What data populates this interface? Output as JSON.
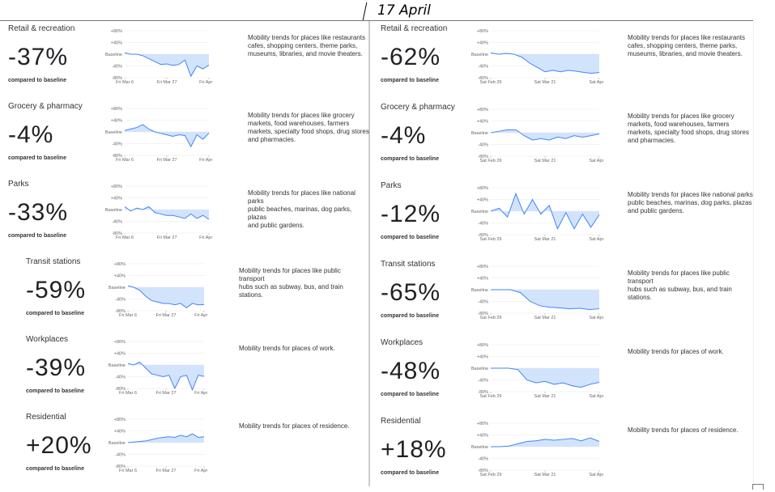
{
  "header": {
    "date": "17 April"
  },
  "colors": {
    "line": "#4285f4",
    "fill": "#d2e3fc",
    "grid": "#e8e8e8"
  },
  "y_labels": [
    "+80%",
    "+40%",
    "Baseline",
    "-40%",
    "-80%"
  ],
  "compared_label": "compared to baseline",
  "left": {
    "x_labels": [
      "Fri Mar 6",
      "Fri Mar 27",
      "Fri Apr 17"
    ],
    "rows": [
      {
        "title": "Retail & recreation",
        "value": "-37%",
        "desc": "Mobility trends for places like restaurants\ncafes, shopping centers, theme parks,\nmuseums, libraries, and movie theaters.",
        "series": [
          5,
          0,
          0,
          -5,
          -15,
          -25,
          -35,
          -33,
          -38,
          -35,
          -20,
          -75,
          -40,
          -50,
          -37
        ]
      },
      {
        "title": "Grocery & pharmacy",
        "value": "-4%",
        "desc": "Mobility trends for places like grocery\nmarkets, food warehouses, farmers\nmarkets, specialty food shops, drug stores\nand pharmacies.",
        "series": [
          5,
          10,
          15,
          25,
          10,
          0,
          -5,
          -10,
          -15,
          -10,
          -12,
          -50,
          -10,
          -25,
          -4
        ]
      },
      {
        "title": "Parks",
        "value": "-33%",
        "desc": "Mobility trends for places like national parks\npublic beaches, marinas, dog parks, plazas\nand public gardens.",
        "series": [
          10,
          -5,
          5,
          0,
          10,
          -10,
          -15,
          -20,
          -20,
          -25,
          -30,
          -15,
          -30,
          -20,
          -33
        ]
      },
      {
        "title": "Transit stations",
        "value": "-59%",
        "desc": "Mobility trends for places like public transport\nhubs such as subway, bus, and train stations.",
        "series": [
          5,
          0,
          -10,
          -30,
          -45,
          -50,
          -55,
          -55,
          -60,
          -55,
          -70,
          -55,
          -60,
          -59
        ]
      },
      {
        "title": "Workplaces",
        "value": "-39%",
        "desc": "Mobility trends for places of work.",
        "series": [
          5,
          0,
          10,
          -10,
          -30,
          -35,
          -40,
          -35,
          -80,
          -40,
          -35,
          -85,
          -35,
          -39
        ]
      },
      {
        "title": "Residential",
        "value": "+20%",
        "desc": "Mobility trends for places of residence.",
        "series": [
          0,
          2,
          4,
          6,
          10,
          15,
          18,
          20,
          18,
          25,
          20,
          30,
          18,
          20
        ]
      }
    ]
  },
  "right": {
    "x_labels": [
      "Sat Feb 29",
      "Sat Mar 21",
      "Sat Apr 11"
    ],
    "rows": [
      {
        "title": "Retail & recreation",
        "value": "-62%",
        "desc": "Mobility trends for places like restaurants\ncafes, shopping centers, theme parks,\nmuseums, libraries, and movie theaters.",
        "series": [
          5,
          0,
          3,
          0,
          -10,
          -30,
          -45,
          -60,
          -55,
          -60,
          -55,
          -58,
          -62,
          -65,
          -62
        ]
      },
      {
        "title": "Grocery & pharmacy",
        "value": "-4%",
        "desc": "Mobility trends for places like grocery\nmarkets, food warehouses, farmers\nmarkets, specialty food shops, drug stores\nand pharmacies.",
        "series": [
          0,
          5,
          10,
          10,
          -10,
          -25,
          -20,
          -25,
          -15,
          -20,
          -10,
          -15,
          -10,
          -4
        ]
      },
      {
        "title": "Parks",
        "value": "-12%",
        "desc": "Mobility trends for places like national parks\npublic beaches, marinas, dog parks, plazas\nand public gardens.",
        "series": [
          0,
          10,
          -20,
          60,
          -10,
          40,
          -10,
          20,
          -60,
          -5,
          -60,
          -10,
          -55,
          -12
        ]
      },
      {
        "title": "Transit stations",
        "value": "-65%",
        "desc": "Mobility trends for places like public transport\nhubs such as subway, bus, and train stations.",
        "series": [
          0,
          0,
          0,
          -10,
          -40,
          -55,
          -60,
          -62,
          -65,
          -63,
          -68,
          -65
        ]
      },
      {
        "title": "Workplaces",
        "value": "-48%",
        "desc": "Mobility trends for places of work.",
        "series": [
          0,
          0,
          0,
          -5,
          -40,
          -50,
          -45,
          -55,
          -50,
          -60,
          -65,
          -55,
          -48
        ]
      },
      {
        "title": "Residential",
        "value": "+18%",
        "desc": "Mobility trends for places of residence.",
        "series": [
          0,
          0,
          2,
          10,
          18,
          20,
          25,
          22,
          25,
          28,
          20,
          30,
          18
        ]
      }
    ]
  }
}
